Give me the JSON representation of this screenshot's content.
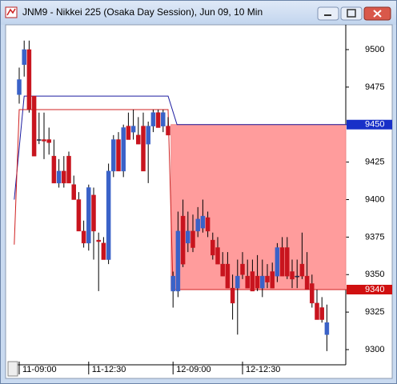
{
  "window_title": "JNM9 - Nikkei 225 (Osaka Day Session), Jun 09, 10 Min",
  "chart_data": {
    "type": "candlestick",
    "categories": [
      "11-09:00",
      null,
      null,
      null,
      null,
      null,
      null,
      null,
      null,
      null,
      null,
      null,
      null,
      null,
      "11-12:30",
      null,
      null,
      null,
      null,
      null,
      null,
      null,
      null,
      null,
      null,
      null,
      null,
      null,
      null,
      null,
      null,
      "12-09:00",
      null,
      null,
      null,
      null,
      null,
      null,
      null,
      null,
      null,
      null,
      null,
      null,
      null,
      "12-12:30",
      null,
      null,
      null,
      null,
      null,
      null,
      null,
      null,
      null,
      null,
      null,
      null,
      null,
      null,
      null,
      null,
      null
    ],
    "open": [
      9470,
      9490,
      9500,
      9469,
      9440,
      9440,
      9440,
      9429,
      9411,
      9419,
      9429,
      9410,
      9400,
      9379,
      9371,
      9403,
      9373,
      9371,
      9360,
      9419,
      9440,
      9419,
      9449,
      9445,
      9443,
      9449,
      9437,
      9449,
      9458,
      9449,
      9449,
      9339,
      9339,
      9389,
      9371,
      9379,
      9379,
      9381,
      9388,
      9373,
      9368,
      9357,
      9357,
      9341,
      9341,
      9357,
      9349,
      9352,
      9349,
      9341,
      9349,
      9352,
      9349,
      9368,
      9368,
      9352,
      9349,
      9357,
      9349,
      9344,
      9331,
      9328,
      9310
    ],
    "high": [
      9488,
      9506,
      9506,
      9469,
      9458,
      9458,
      9448,
      9440,
      9427,
      9429,
      9432,
      9416,
      9405,
      9386,
      9410,
      9408,
      9378,
      9375,
      9424,
      9443,
      9445,
      9450,
      9458,
      9460,
      9455,
      9458,
      9452,
      9460,
      9460,
      9460,
      9455,
      9352,
      9392,
      9400,
      9392,
      9390,
      9395,
      9400,
      9392,
      9378,
      9375,
      9365,
      9365,
      9350,
      9360,
      9365,
      9360,
      9360,
      9363,
      9360,
      9357,
      9358,
      9371,
      9375,
      9375,
      9360,
      9360,
      9378,
      9365,
      9350,
      9340,
      9335,
      9330
    ],
    "low": [
      9464,
      9482,
      9458,
      9429,
      9437,
      9427,
      9430,
      9411,
      9408,
      9408,
      9411,
      9400,
      9379,
      9368,
      9366,
      9360,
      9339,
      9360,
      9357,
      9415,
      9419,
      9415,
      9440,
      9440,
      9437,
      9419,
      9411,
      9445,
      9448,
      9445,
      9443,
      9328,
      9335,
      9355,
      9365,
      9365,
      9375,
      9378,
      9375,
      9360,
      9357,
      9349,
      9341,
      9320,
      9310,
      9347,
      9341,
      9339,
      9339,
      9335,
      9341,
      9341,
      9345,
      9349,
      9347,
      9341,
      9341,
      9347,
      9340,
      9328,
      9320,
      9318,
      9299
    ],
    "close": [
      9480,
      9500,
      9460,
      9429,
      9440,
      9439,
      9438,
      9411,
      9419,
      9411,
      9411,
      9400,
      9379,
      9371,
      9408,
      9379,
      9372,
      9360,
      9419,
      9440,
      9419,
      9448,
      9440,
      9449,
      9437,
      9419,
      9449,
      9458,
      9448,
      9458,
      9443,
      9349,
      9379,
      9357,
      9379,
      9368,
      9387,
      9389,
      9379,
      9363,
      9357,
      9349,
      9341,
      9331,
      9349,
      9350,
      9341,
      9339,
      9341,
      9349,
      9345,
      9341,
      9368,
      9349,
      9349,
      9347,
      9349,
      9349,
      9340,
      9331,
      9320,
      9320,
      9318
    ],
    "up_color": "#3a62c8",
    "down_color": "#c8141e",
    "lines": [
      {
        "color": "#1c1ca0",
        "x": [
          -1,
          1,
          30,
          31.8,
          66
        ],
        "values": [
          9400,
          9469,
          9469,
          9450,
          9450
        ]
      },
      {
        "color": "#d02020",
        "x": [
          -1,
          0,
          30,
          31,
          66
        ],
        "values": [
          9370,
          9460,
          9460,
          9340,
          9340
        ]
      }
    ],
    "zone": {
      "top": 9450,
      "bottom": 9340,
      "color": "#ff9c9c",
      "x_start": 30.6
    },
    "markers": [
      {
        "value": 9450,
        "color": "#1830c8"
      },
      {
        "value": 9340,
        "color": "#d01010"
      }
    ],
    "ylim": [
      9292,
      9516
    ],
    "yticks": [
      9300,
      9325,
      9350,
      9375,
      9400,
      9425,
      9450,
      9475,
      9500
    ]
  }
}
